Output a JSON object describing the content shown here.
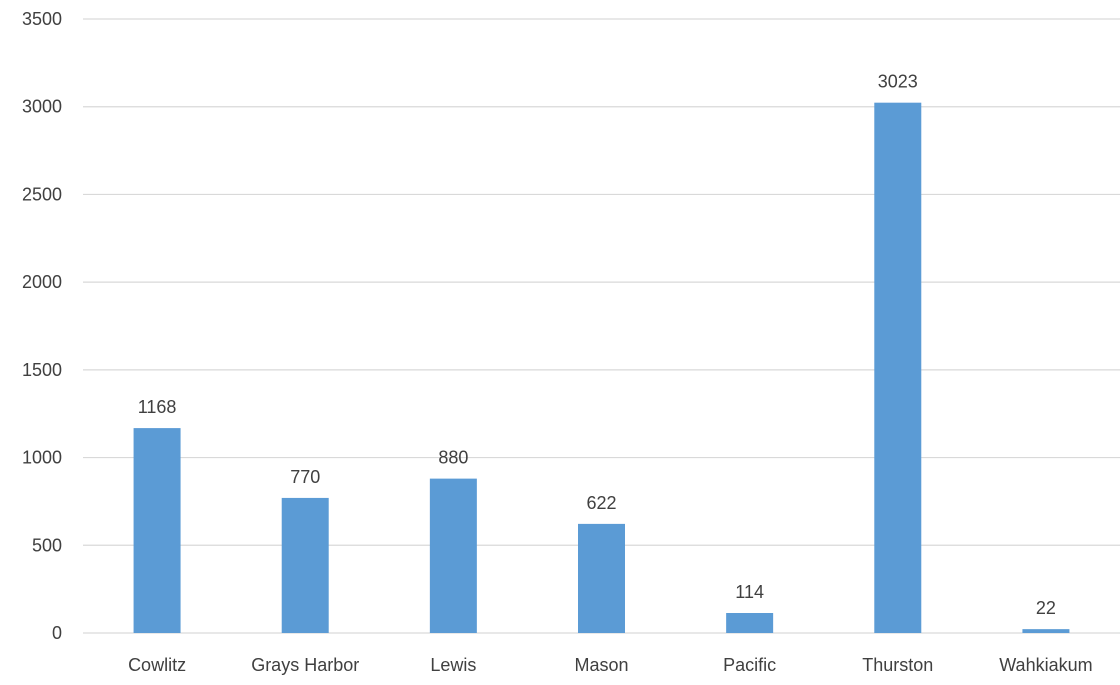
{
  "chart_data": {
    "type": "bar",
    "title": "",
    "xlabel": "",
    "ylabel": "",
    "categories": [
      "Cowlitz",
      "Grays Harbor",
      "Lewis",
      "Mason",
      "Pacific",
      "Thurston",
      "Wahkiakum"
    ],
    "values": [
      1168,
      770,
      880,
      622,
      114,
      3023,
      22
    ],
    "ylim": [
      0,
      3500
    ],
    "yticks": [
      0,
      500,
      1000,
      1500,
      2000,
      2500,
      3000,
      3500
    ],
    "grid": true,
    "legend": "none",
    "data_labels": true,
    "bar_color": "#5b9bd5",
    "gridline_color": "#d9d9d9",
    "text_color": "#404040"
  }
}
